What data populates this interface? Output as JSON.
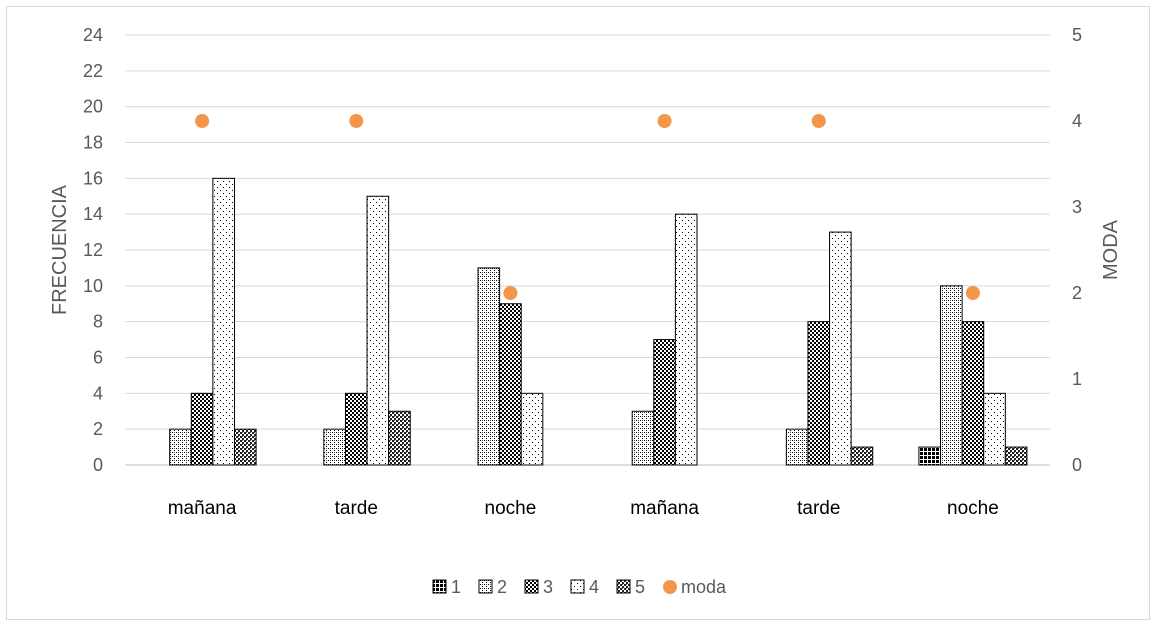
{
  "chart_data": {
    "type": "bar",
    "categories": [
      "mañana",
      "tarde",
      "noche",
      "mañana",
      "tarde",
      "noche"
    ],
    "series": [
      {
        "name": "1",
        "values": [
          0,
          0,
          0,
          0,
          0,
          1
        ]
      },
      {
        "name": "2",
        "values": [
          2,
          2,
          11,
          3,
          2,
          10
        ]
      },
      {
        "name": "3",
        "values": [
          4,
          4,
          9,
          7,
          8,
          8
        ]
      },
      {
        "name": "4",
        "values": [
          16,
          15,
          4,
          14,
          13,
          4
        ]
      },
      {
        "name": "5",
        "values": [
          2,
          3,
          0,
          0,
          1,
          1
        ]
      }
    ],
    "secondary_series": {
      "name": "moda",
      "type": "scatter",
      "axis": "right",
      "values": [
        4,
        4,
        2,
        4,
        4,
        2
      ],
      "color": "#f4964a"
    },
    "ylabel": "FRECUENCIA",
    "y2label": "MODA",
    "ylim": [
      0,
      24
    ],
    "y_ticks": [
      "0",
      "2",
      "4",
      "6",
      "8",
      "10",
      "12",
      "14",
      "16",
      "18",
      "20",
      "22",
      "24"
    ],
    "y2lim": [
      0,
      5
    ],
    "y2_ticks": [
      "0",
      "1",
      "2",
      "3",
      "4",
      "5"
    ],
    "grid": true,
    "legend_position": "bottom"
  }
}
